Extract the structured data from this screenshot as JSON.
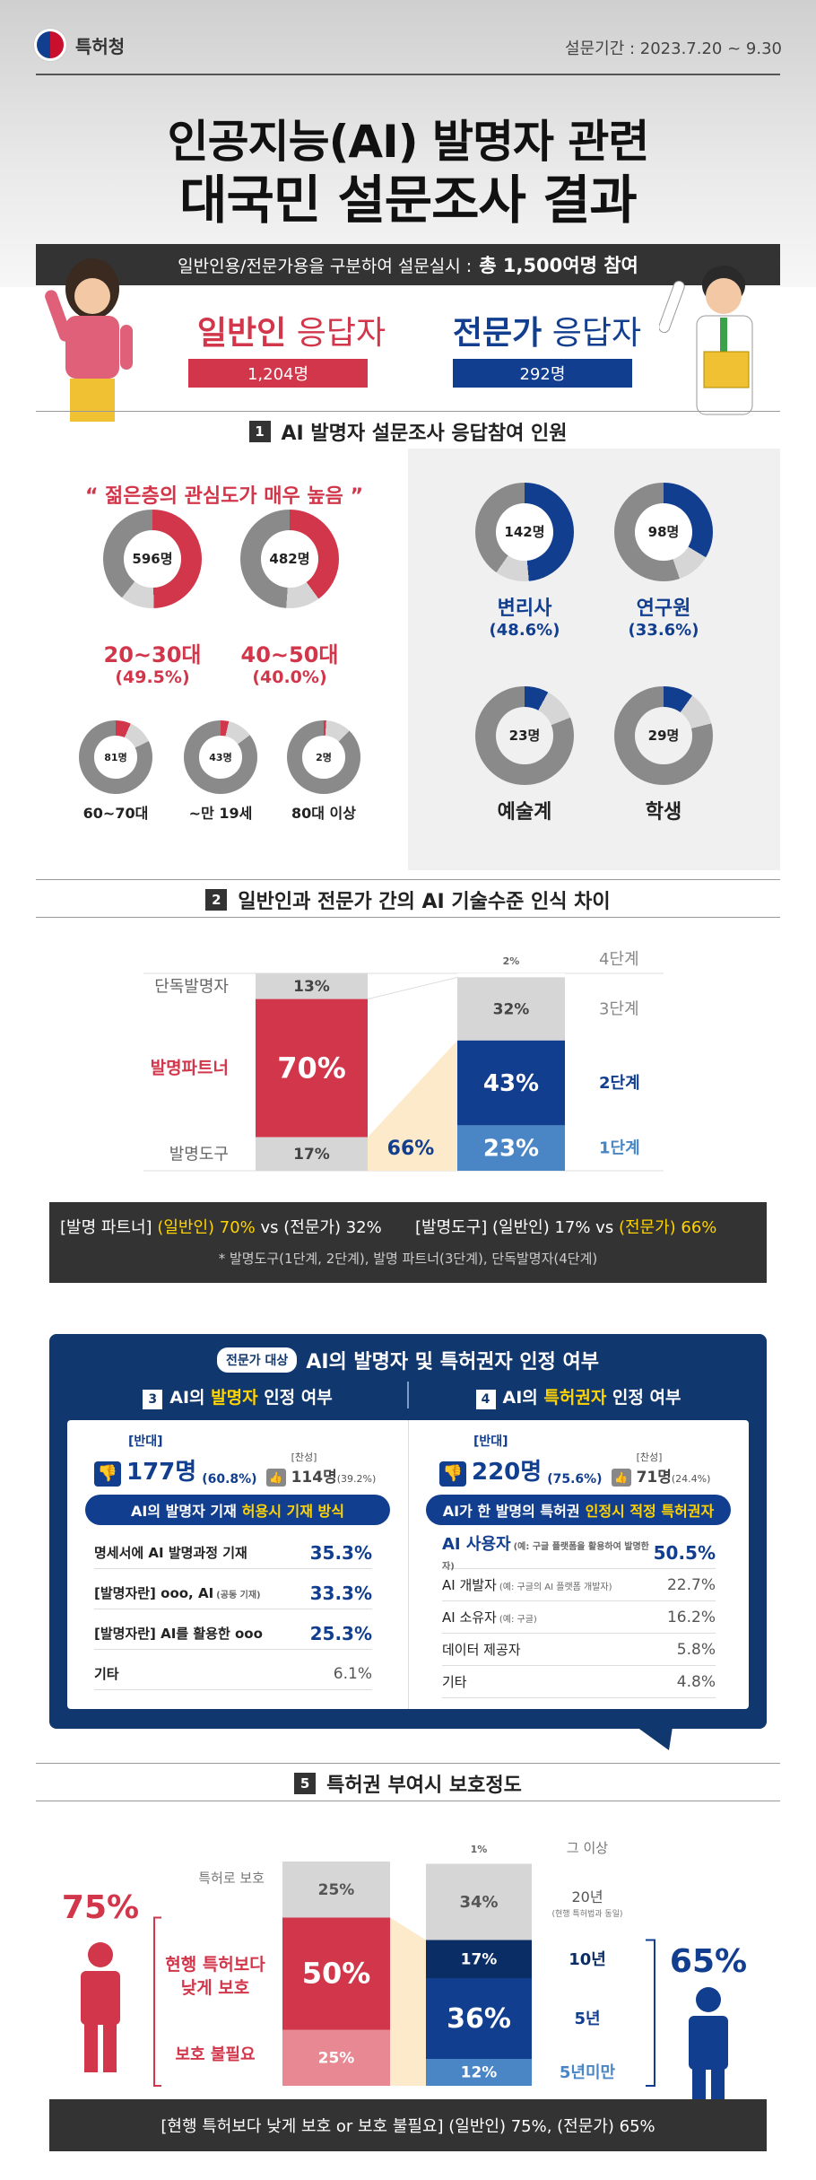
{
  "header": {
    "org_name": "특허청",
    "period": "설문기간 : 2023.7.20 ~ 9.30",
    "title_line1": "인공지능(AI) 발명자 관련",
    "title_line2": "대국민 설문조사 결과",
    "summary_prefix": "일반인용/전문가용을 구분하여 설문실시 :",
    "summary_bold": "총 1,500여명 참여"
  },
  "respondents": {
    "general": {
      "title_bold": "일반인",
      "title_rest": " 응답자",
      "count": "1,204명"
    },
    "expert": {
      "title_bold": "전문가",
      "title_rest": " 응답자",
      "count": "292명"
    }
  },
  "section1": {
    "num": "1",
    "title": "AI 발명자 설문조사 응답참여 인원",
    "quote": "“ 젊은층의 관심도가 매우 높음 ”",
    "general_groups": [
      {
        "value": "596명",
        "label": "20~30대",
        "pct": "(49.5%)",
        "share": 0.495
      },
      {
        "value": "482명",
        "label": "40~50대",
        "pct": "(40.0%)",
        "share": 0.4
      },
      {
        "value": "81명",
        "label": "60~70대",
        "share": 0.067
      },
      {
        "value": "43명",
        "label": "~만 19세",
        "share": 0.036
      },
      {
        "value": "2명",
        "label": "80대 이상",
        "share": 0.002
      }
    ],
    "expert_groups": [
      {
        "value": "142명",
        "label": "변리사",
        "pct": "(48.6%)",
        "share": 0.486
      },
      {
        "value": "98명",
        "label": "연구원",
        "pct": "(33.6%)",
        "share": 0.336
      },
      {
        "value": "23명",
        "label": "예술계",
        "share": 0.079
      },
      {
        "value": "29명",
        "label": "학생",
        "share": 0.099
      }
    ]
  },
  "section2": {
    "num": "2",
    "title": "일반인과 전문가 간의 AI 기술수준 인식 차이",
    "left_labels": [
      "단독발명자",
      "발명파트너",
      "발명도구"
    ],
    "general_bar": [
      "13%",
      "70%",
      "17%"
    ],
    "general_values": [
      13,
      70,
      17
    ],
    "expert_bar": [
      "2%",
      "32%",
      "43%",
      "23%"
    ],
    "expert_values": [
      2,
      32,
      43,
      23
    ],
    "expert_tool_total": "66%",
    "stage_labels": [
      "4단계",
      "3단계",
      "2단계",
      "1단계"
    ],
    "note1_a": "[발명 파트너]",
    "note1_b": "(일반인) 70%",
    "note1_c": "vs (전문가) 32%",
    "note2_a": "[발명도구] (일반인) 17% vs",
    "note2_b": "(전문가) 66%",
    "footnote": "* 발명도구(1단계, 2단계), 발명 파트너(3단계), 단독발명자(4단계)"
  },
  "expert_card": {
    "tag": "전문가 대상",
    "title": "AI의 발명자 및 특허권자 인정 여부",
    "q3": {
      "num": "3",
      "title_a": "AI의 ",
      "title_b": "발명자",
      "title_c": " 인정 여부",
      "oppose_label": "[반대]",
      "oppose_value": "177명",
      "oppose_pct": "(60.8%)",
      "agree_label": "[찬성]",
      "agree_value": "114명",
      "agree_pct": "(39.2%)",
      "bar_a": "AI의 발명자 기재",
      "bar_b": "허용시 기재 방식",
      "rows": [
        {
          "label": "명세서에 AI 발명과정 기재",
          "sub": "",
          "pct": "35.3%"
        },
        {
          "label": "[발명자란] ooo, AI",
          "sub": "(공동 기재)",
          "pct": "33.3%"
        },
        {
          "label": "[발명자란] AI를 활용한 ooo",
          "sub": "",
          "pct": "25.3%"
        },
        {
          "label": "기타",
          "sub": "",
          "pct": "6.1%"
        }
      ]
    },
    "q4": {
      "num": "4",
      "title_a": "AI의 ",
      "title_b": "특허권자",
      "title_c": " 인정 여부",
      "oppose_label": "[반대]",
      "oppose_value": "220명",
      "oppose_pct": "(75.6%)",
      "agree_label": "[찬성]",
      "agree_value": "71명",
      "agree_pct": "(24.4%)",
      "bar_a": "AI가 한 발명의 특허권",
      "bar_b": "인정시 적정 특허권자",
      "rows": [
        {
          "label": "AI 사용자",
          "sub": "(예: 구글 플랫폼을 활용하여 발명한 자)",
          "pct": "50.5%"
        },
        {
          "label": "AI 개발자",
          "sub": "(예: 구글의 AI 플랫폼 개발자)",
          "pct": "22.7%"
        },
        {
          "label": "AI 소유자",
          "sub": "(예: 구글)",
          "pct": "16.2%"
        },
        {
          "label": "데이터 제공자",
          "sub": "",
          "pct": "5.8%"
        },
        {
          "label": "기타",
          "sub": "",
          "pct": "4.8%"
        }
      ]
    }
  },
  "section5": {
    "num": "5",
    "title": "특허권 부여시 보호정도",
    "general_total": "75%",
    "expert_total": "65%",
    "left_labels": [
      "특허로 보호",
      "현행 특허보다\n낮게 보호",
      "보호 불필요"
    ],
    "general_bar": [
      "25%",
      "50%",
      "25%"
    ],
    "general_values": [
      25,
      50,
      25
    ],
    "expert_bar": [
      "1%",
      "34%",
      "17%",
      "36%",
      "12%"
    ],
    "expert_values": [
      1,
      34,
      17,
      36,
      12
    ],
    "right_labels": [
      "그 이상",
      "20년",
      "(현행 특허법과 동일)",
      "10년",
      "5년",
      "5년미만"
    ],
    "footer": "[현행 특허보다 낮게 보호 or 보호 불필요] (일반인) 75%, (전문가) 65%"
  },
  "colors": {
    "red": "#d2364a",
    "blue": "#123e8f",
    "light_blue": "#4a86c5",
    "gray": "#8a8a8a",
    "light_gray": "#d6d6d6",
    "yellow": "#ffd400",
    "dark": "#333333"
  }
}
